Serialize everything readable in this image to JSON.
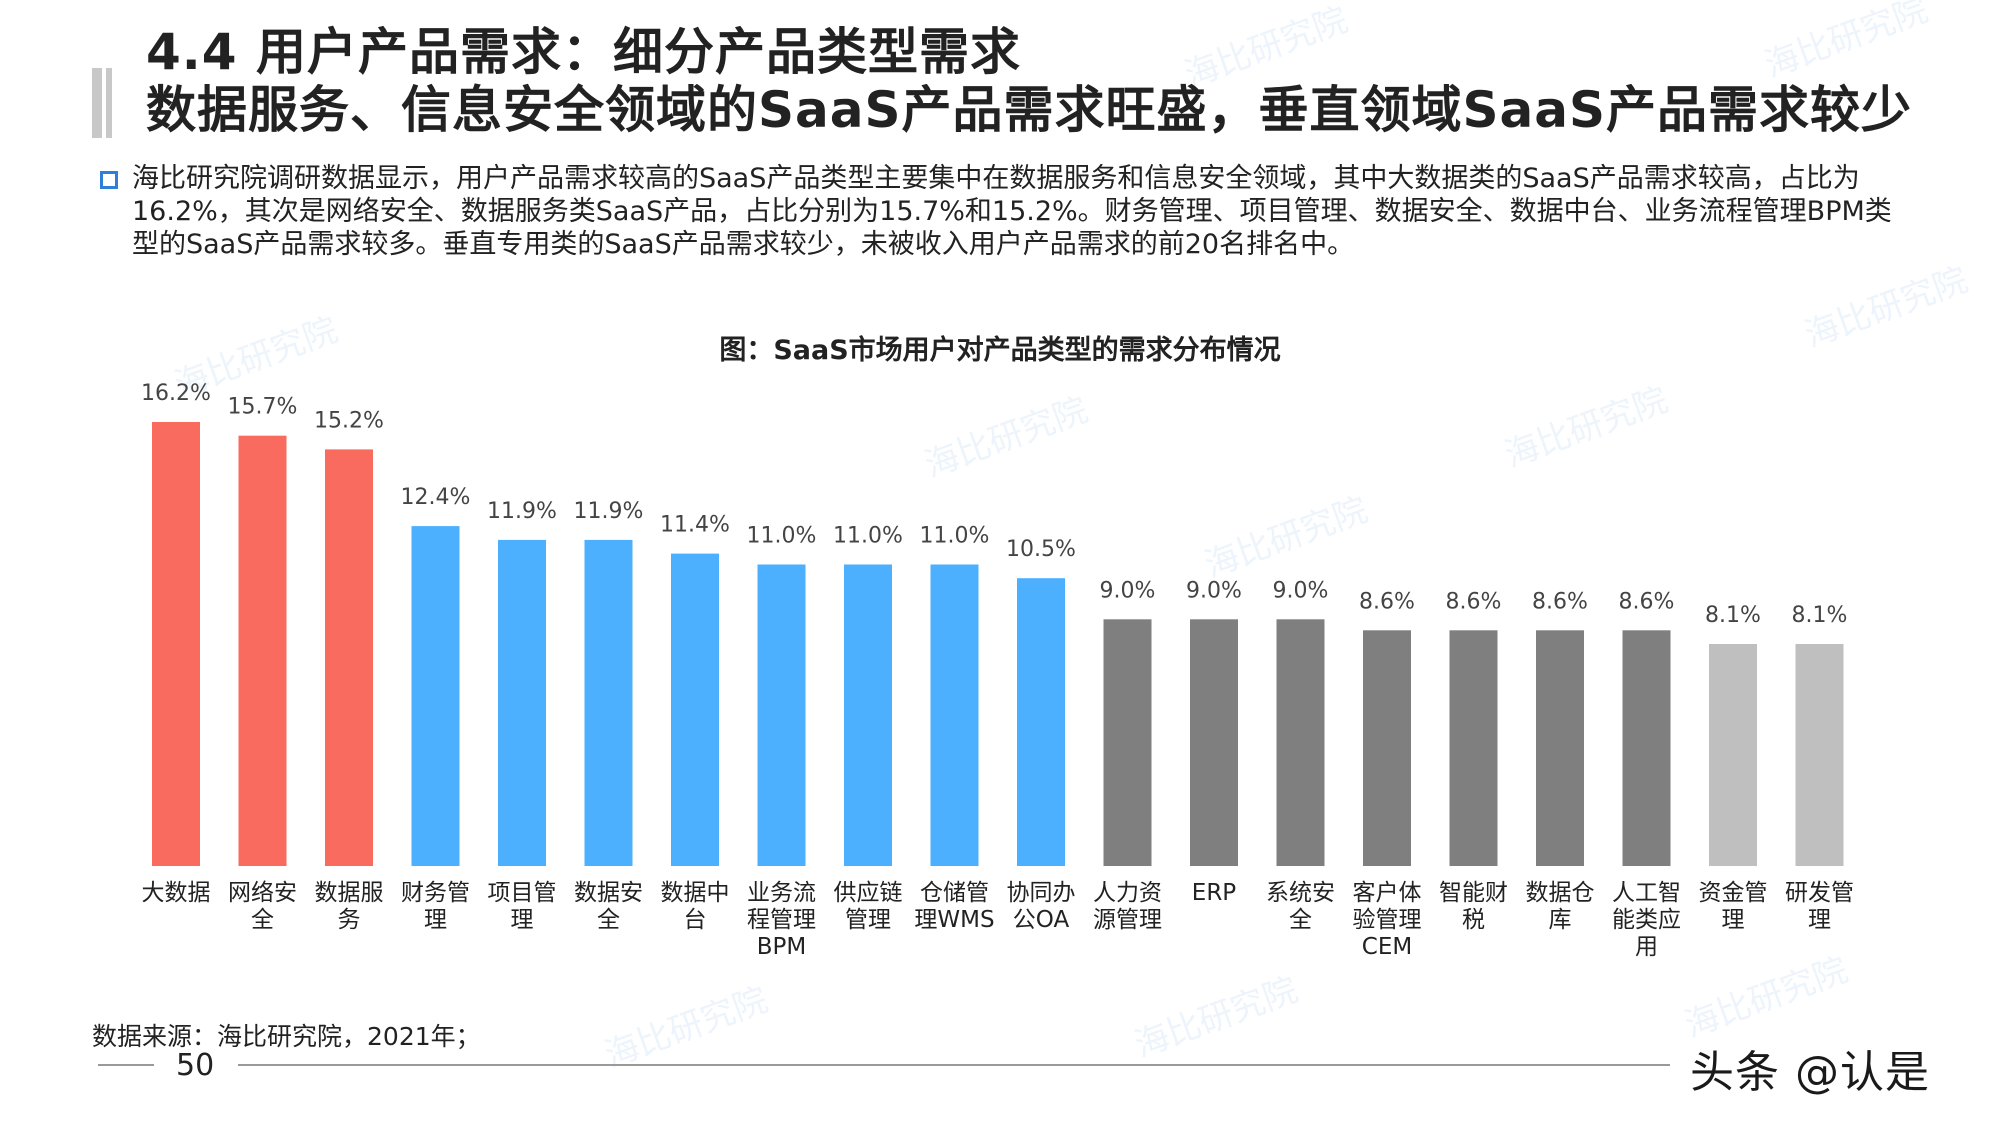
{
  "header": {
    "title_line1": "4.4 用户产品需求：细分产品类型需求",
    "title_line2": "数据服务、信息安全领域的SaaS产品需求旺盛，垂直领域SaaS产品需求较少"
  },
  "description": "海比研究院调研数据显示，用户产品需求较高的SaaS产品类型主要集中在数据服务和信息安全领域，其中大数据类的SaaS产品需求较高，占比为16.2%，其次是网络安全、数据服务类SaaS产品，占比分别为15.7%和15.2%。财务管理、项目管理、数据安全、数据中台、业务流程管理BPM类型的SaaS产品需求较多。垂直专用类的SaaS产品需求较少，未被收入用户产品需求的前20名排名中。",
  "chart_data": {
    "type": "bar",
    "title": "图：SaaS市场用户对产品类型的需求分布情况",
    "categories": [
      [
        "大数据"
      ],
      [
        "网络安",
        "全"
      ],
      [
        "数据服",
        "务"
      ],
      [
        "财务管",
        "理"
      ],
      [
        "项目管",
        "理"
      ],
      [
        "数据安",
        "全"
      ],
      [
        "数据中",
        "台"
      ],
      [
        "业务流",
        "程管理",
        "BPM"
      ],
      [
        "供应链",
        "管理"
      ],
      [
        "仓储管",
        "理WMS"
      ],
      [
        "协同办",
        "公OA"
      ],
      [
        "人力资",
        "源管理"
      ],
      [
        "ERP"
      ],
      [
        "系统安",
        "全"
      ],
      [
        "客户体",
        "验管理",
        "CEM"
      ],
      [
        "智能财",
        "税"
      ],
      [
        "数据仓",
        "库"
      ],
      [
        "人工智",
        "能类应",
        "用"
      ],
      [
        "资金管",
        "理"
      ],
      [
        "研发管",
        "理"
      ]
    ],
    "values": [
      16.2,
      15.7,
      15.2,
      12.4,
      11.9,
      11.9,
      11.4,
      11.0,
      11.0,
      11.0,
      10.5,
      9.0,
      9.0,
      9.0,
      8.6,
      8.6,
      8.6,
      8.6,
      8.1,
      8.1
    ],
    "value_labels": [
      "16.2%",
      "15.7%",
      "15.2%",
      "12.4%",
      "11.9%",
      "11.9%",
      "11.4%",
      "11.0%",
      "11.0%",
      "11.0%",
      "10.5%",
      "9.0%",
      "9.0%",
      "9.0%",
      "8.6%",
      "8.6%",
      "8.6%",
      "8.6%",
      "8.1%",
      "8.1%"
    ],
    "bar_colors": [
      "#f96b5f",
      "#f96b5f",
      "#f96b5f",
      "#4db0ff",
      "#4db0ff",
      "#4db0ff",
      "#4db0ff",
      "#4db0ff",
      "#4db0ff",
      "#4db0ff",
      "#4db0ff",
      "#7f7f7f",
      "#7f7f7f",
      "#7f7f7f",
      "#7f7f7f",
      "#7f7f7f",
      "#7f7f7f",
      "#7f7f7f",
      "#bfbfbf",
      "#bfbfbf"
    ],
    "ylim": [
      0,
      16.2
    ],
    "grid": false,
    "legend": "none"
  },
  "footer": {
    "source": "数据来源：海比研究院，2021年；",
    "page_number": "50",
    "brand": "头条 @认是"
  },
  "watermark": "海比研究院"
}
